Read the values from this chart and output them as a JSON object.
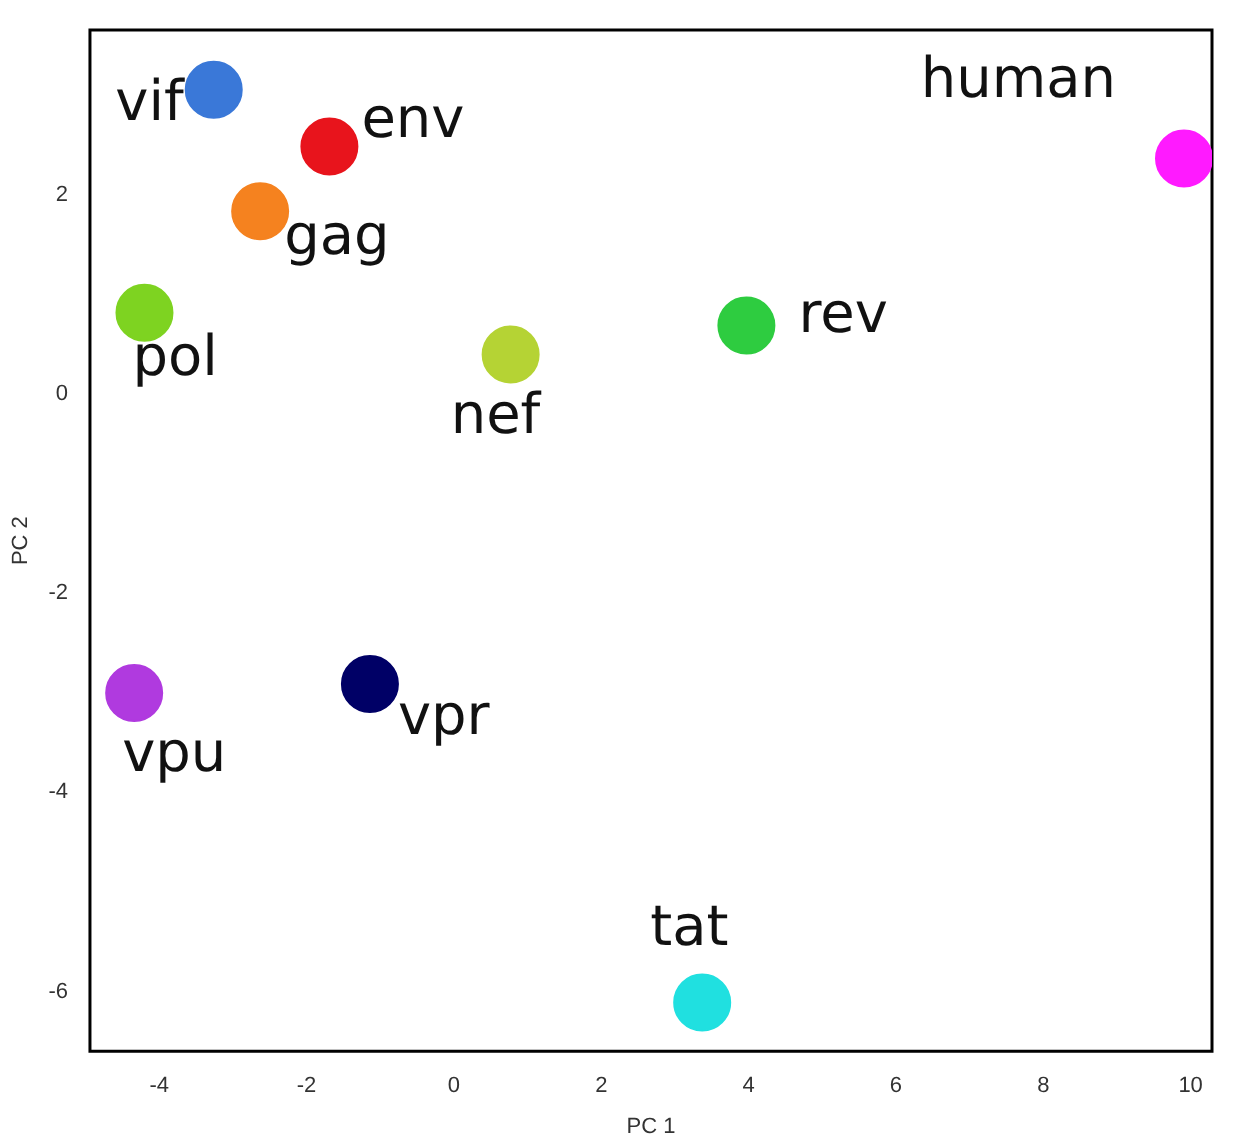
{
  "chart_data": {
    "type": "scatter",
    "xlabel": "PC 1",
    "ylabel": "PC 2",
    "xlim": [
      -4.94,
      10.29
    ],
    "ylim": [
      -6.6,
      3.66
    ],
    "xticks": [
      -4,
      -2,
      0,
      2,
      4,
      6,
      8,
      10
    ],
    "yticks": [
      -6,
      -4,
      -2,
      0,
      2
    ],
    "grid": false,
    "legend": false,
    "marker": "circle",
    "series": [
      {
        "name": "vif",
        "color": "#3a78d8",
        "x": [
          -3.26
        ],
        "values": [
          3.06
        ]
      },
      {
        "name": "env",
        "color": "#e8141c",
        "x": [
          -1.69
        ],
        "values": [
          2.49
        ]
      },
      {
        "name": "gag",
        "color": "#f5821f",
        "x": [
          -2.63
        ],
        "values": [
          1.84
        ]
      },
      {
        "name": "pol",
        "color": "#7ed321",
        "x": [
          -4.2
        ],
        "values": [
          0.82
        ]
      },
      {
        "name": "nef",
        "color": "#b5d334",
        "x": [
          0.77
        ],
        "values": [
          0.4
        ]
      },
      {
        "name": "rev",
        "color": "#2ecc40",
        "x": [
          3.97
        ],
        "values": [
          0.69
        ]
      },
      {
        "name": "human",
        "color": "#ff1aff",
        "x": [
          9.91
        ],
        "values": [
          2.37
        ]
      },
      {
        "name": "vpu",
        "color": "#b03adf",
        "x": [
          -4.34
        ],
        "values": [
          -3.0
        ]
      },
      {
        "name": "vpr",
        "color": "#000066",
        "x": [
          -1.14
        ],
        "values": [
          -2.91
        ]
      },
      {
        "name": "tat",
        "color": "#20e0e0",
        "x": [
          3.37
        ],
        "values": [
          -6.11
        ]
      }
    ]
  }
}
